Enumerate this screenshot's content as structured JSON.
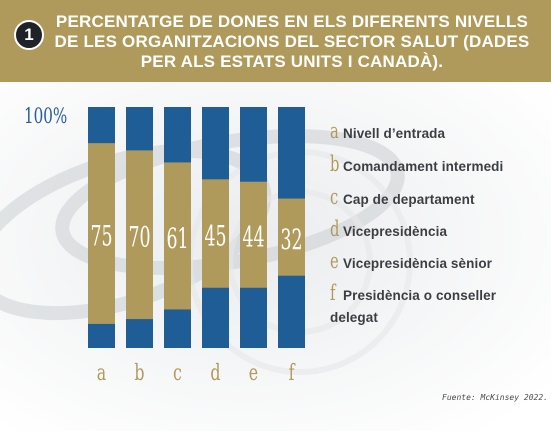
{
  "header": {
    "badge": "1",
    "title": "PERCENTATGE DE DONES EN ELS DIFERENTS NIVELLS DE LES ORGANITZACIONS DEL SECTOR SALUT (DADES PER ALS ESTATS UNITS I CANADÀ)."
  },
  "chart_data": {
    "type": "bar",
    "title": "PERCENTATGE DE DONES EN ELS DIFERENTS NIVELLS DE LES ORGANITZACIONS DEL SECTOR SALUT (DADES PER ALS ESTATS UNITS I CANADÀ).",
    "max_label": "100%",
    "ylim": [
      0,
      100
    ],
    "categories": [
      "a",
      "b",
      "c",
      "d",
      "e",
      "f"
    ],
    "values": [
      75,
      70,
      61,
      45,
      44,
      32
    ],
    "value_labels": [
      "75",
      "70",
      "61",
      "45",
      "44",
      "32"
    ],
    "segment_bottoms": [
      10,
      12,
      16,
      25,
      25,
      30
    ],
    "legend": [
      {
        "letter": "a",
        "label": "Nivell d’entrada"
      },
      {
        "letter": "b",
        "label": "Comandament intermedi"
      },
      {
        "letter": "c",
        "label": "Cap de departament"
      },
      {
        "letter": "d",
        "label": "Vicepresidència"
      },
      {
        "letter": "e",
        "label": "Vicepresidència sènior"
      },
      {
        "letter": "f",
        "label": "Presidència o conseller delegat"
      }
    ],
    "colors": {
      "women": "#b09a5b",
      "rest": "#1f5d97",
      "tick": "#b09a5b"
    },
    "grid": false
  },
  "source": "Fuente: McKinsey 2022."
}
